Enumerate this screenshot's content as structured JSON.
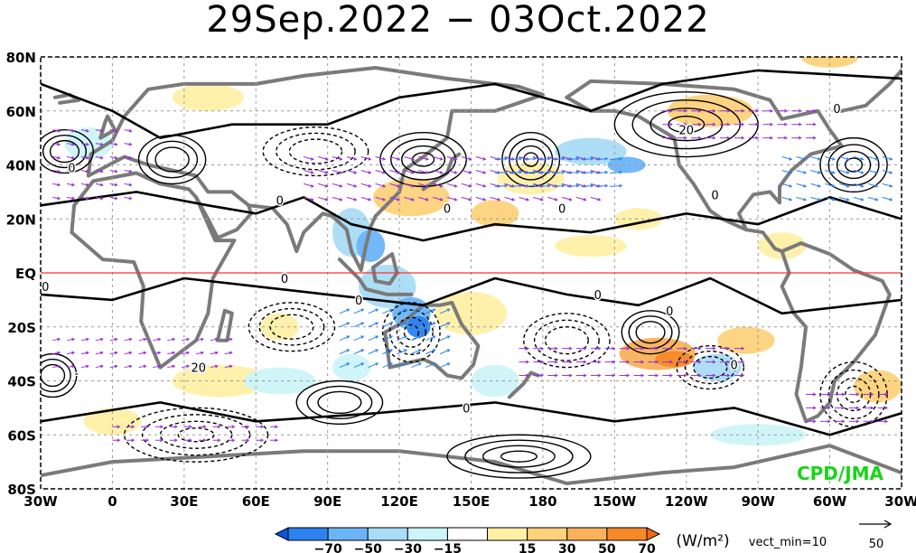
{
  "chart_data": {
    "type": "map",
    "title": "29Sep.2022 − 03Oct.2022",
    "projection": "equirectangular",
    "lon_range": [
      -30,
      330
    ],
    "lat_range": [
      -80,
      80
    ],
    "x_ticks": [
      {
        "lon": -30,
        "label": "30W"
      },
      {
        "lon": 0,
        "label": "0"
      },
      {
        "lon": 30,
        "label": "30E"
      },
      {
        "lon": 60,
        "label": "60E"
      },
      {
        "lon": 90,
        "label": "90E"
      },
      {
        "lon": 120,
        "label": "120E"
      },
      {
        "lon": 150,
        "label": "150E"
      },
      {
        "lon": 180,
        "label": "180"
      },
      {
        "lon": 210,
        "label": "150W"
      },
      {
        "lon": 240,
        "label": "120W"
      },
      {
        "lon": 270,
        "label": "90W"
      },
      {
        "lon": 300,
        "label": "60W"
      },
      {
        "lon": 330,
        "label": "30W"
      }
    ],
    "y_ticks": [
      {
        "lat": 80,
        "label": "80N"
      },
      {
        "lat": 60,
        "label": "60N"
      },
      {
        "lat": 40,
        "label": "40N"
      },
      {
        "lat": 20,
        "label": "20N"
      },
      {
        "lat": 0,
        "label": "EQ"
      },
      {
        "lat": -20,
        "label": "20S"
      },
      {
        "lat": -40,
        "label": "40S"
      },
      {
        "lat": -60,
        "label": "60S"
      },
      {
        "lat": -80,
        "label": "80S"
      }
    ],
    "grid": true,
    "equator_line": true,
    "colorbar": {
      "levels": [
        "−70",
        "−50",
        "−30",
        "−15",
        "15",
        "30",
        "50",
        "70"
      ],
      "colors": [
        "#0a55e0",
        "#2c82f0",
        "#6cb4f8",
        "#a9dcf6",
        "#cdf4f8",
        "#ffffff",
        "#fff0a6",
        "#fdd27a",
        "#f9b15a",
        "#f78a28",
        "#f06a10"
      ],
      "unit": "(W/m²)",
      "note": "vect_min=10"
    },
    "reference_vector": {
      "label": "50"
    },
    "credit": "CPD/JMA",
    "contour_labels": [
      {
        "lon": -17,
        "lat": 39,
        "text": "0"
      },
      {
        "lon": 70,
        "lat": 27,
        "text": "0"
      },
      {
        "lon": 103,
        "lat": -10,
        "text": "0"
      },
      {
        "lon": 72,
        "lat": -2,
        "text": "0"
      },
      {
        "lon": -28,
        "lat": -5,
        "text": "0"
      },
      {
        "lon": 203,
        "lat": -8,
        "text": "0"
      },
      {
        "lon": 233,
        "lat": -14,
        "text": "0"
      },
      {
        "lon": 148,
        "lat": -50,
        "text": "0"
      },
      {
        "lon": 260,
        "lat": -34,
        "text": "0"
      },
      {
        "lon": 252,
        "lat": 29,
        "text": "0"
      },
      {
        "lon": 303,
        "lat": 61,
        "text": "0"
      },
      {
        "lon": 140,
        "lat": 24,
        "text": "0"
      },
      {
        "lon": 188,
        "lat": 24,
        "text": "0"
      },
      {
        "lon": 240,
        "lat": 53,
        "text": "20"
      },
      {
        "lon": 36,
        "lat": -35,
        "text": "20"
      },
      {
        "lon": -15,
        "lat": -37,
        "text": "-"
      }
    ]
  }
}
